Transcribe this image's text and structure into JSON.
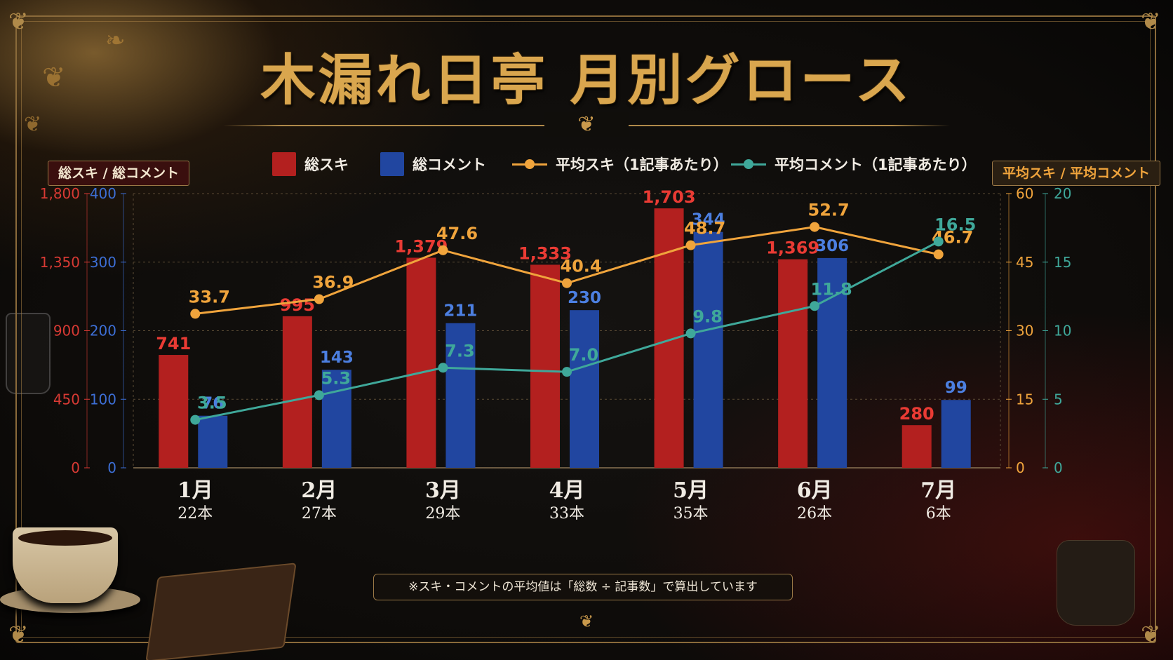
{
  "title": "木漏れ日亭 月別グロース",
  "axis_boxes": {
    "left": "総スキ / 総コメント",
    "right": "平均スキ / 平均コメント"
  },
  "legend": {
    "likes": "総スキ",
    "comments": "総コメント",
    "avg_likes": "平均スキ（1記事あたり）",
    "avg_comments": "平均コメント（1記事あたり）"
  },
  "footnote": "※スキ・コメントの平均値は「総数 ÷ 記事数」で算出しています",
  "colors": {
    "likes": "#b3201f",
    "comments": "#2146a0",
    "avg_likes": "#f0a43c",
    "avg_comments": "#3fa89a",
    "gold": "#d9a64e"
  },
  "chart_data": {
    "type": "bar",
    "categories": [
      "1月",
      "2月",
      "3月",
      "4月",
      "5月",
      "6月",
      "7月"
    ],
    "article_counts": [
      "22本",
      "27本",
      "29本",
      "33本",
      "35本",
      "26本",
      "6本"
    ],
    "series": [
      {
        "name": "総スキ",
        "kind": "bar",
        "axis": "left-outer",
        "values": [
          741,
          995,
          1379,
          1333,
          1703,
          1369,
          280
        ]
      },
      {
        "name": "総コメント",
        "kind": "bar",
        "axis": "left-inner",
        "values": [
          76,
          143,
          211,
          230,
          344,
          306,
          99
        ]
      },
      {
        "name": "平均スキ（1記事あたり）",
        "kind": "line",
        "axis": "right-inner",
        "values": [
          33.7,
          36.9,
          47.6,
          40.4,
          48.7,
          52.7,
          46.7
        ]
      },
      {
        "name": "平均コメント（1記事あたり）",
        "kind": "line",
        "axis": "right-outer",
        "values": [
          3.5,
          5.3,
          7.3,
          7.0,
          9.8,
          11.8,
          16.5
        ]
      }
    ],
    "axes": {
      "left_outer": {
        "range": [
          0,
          1800
        ],
        "ticks": [
          0,
          450,
          900,
          1350,
          1800
        ],
        "tick_labels": [
          "0",
          "450",
          "900",
          "1,350",
          "1,800"
        ]
      },
      "left_inner": {
        "range": [
          0,
          400
        ],
        "ticks": [
          0,
          100,
          200,
          300,
          400
        ],
        "tick_labels": [
          "0",
          "100",
          "200",
          "300",
          "400"
        ]
      },
      "right_inner": {
        "range": [
          0,
          60
        ],
        "ticks": [
          0,
          15,
          30,
          45,
          60
        ],
        "tick_labels": [
          "0",
          "15",
          "30",
          "45",
          "60"
        ]
      },
      "right_outer": {
        "range": [
          0,
          20
        ],
        "ticks": [
          0,
          5,
          10,
          15,
          20
        ],
        "tick_labels": [
          "0",
          "5",
          "10",
          "15",
          "20"
        ]
      }
    },
    "bar_labels": {
      "likes": [
        "741",
        "995",
        "1,379",
        "1,333",
        "1,703",
        "1,369",
        "280"
      ],
      "comments": [
        "76",
        "143",
        "211",
        "230",
        "344",
        "306",
        "99"
      ]
    },
    "line_labels": {
      "avg_likes": [
        "33.7",
        "36.9",
        "47.6",
        "40.4",
        "48.7",
        "52.7",
        "46.7"
      ],
      "avg_comments": [
        "3.5",
        "5.3",
        "7.3",
        "7.0",
        "9.8",
        "11.8",
        "16.5"
      ]
    },
    "grid": true,
    "legend_position": "top-center"
  }
}
